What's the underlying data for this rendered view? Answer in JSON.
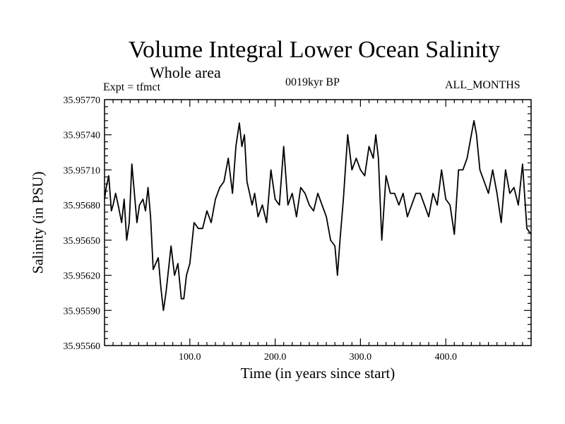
{
  "header": {
    "title": "Volume Integral Lower Ocean Salinity",
    "subtitle": "Whole area",
    "expt": "Expt = tfmct",
    "period": "0019kyr BP",
    "months": "ALL_MONTHS"
  },
  "colors": {
    "line": "#000000",
    "axis": "#000000",
    "background": "#ffffff"
  },
  "chart_data": {
    "type": "line",
    "title": "Volume Integral Lower Ocean Salinity",
    "subtitle": "Whole area",
    "xlabel": "Time (in years since start)",
    "ylabel": "Salinity (in PSU)",
    "xlim": [
      0,
      500
    ],
    "ylim": [
      35.9556,
      35.9577
    ],
    "x_ticks": [
      100,
      200,
      300,
      400
    ],
    "x_tick_labels": [
      "100.0",
      "200.0",
      "300.0",
      "400.0"
    ],
    "y_ticks": [
      35.9556,
      35.9559,
      35.9562,
      35.9565,
      35.9568,
      35.9571,
      35.9574,
      35.9577
    ],
    "y_tick_labels": [
      "35.95560",
      "35.95590",
      "35.95620",
      "35.95650",
      "35.95680",
      "35.95710",
      "35.95740",
      "35.95770"
    ],
    "grid": false,
    "series": [
      {
        "x": [
          0,
          2,
          5,
          8,
          10,
          13,
          16,
          20,
          23,
          26,
          29,
          32,
          35,
          38,
          41,
          45,
          48,
          51,
          54,
          57,
          60,
          63,
          66,
          69,
          72,
          75,
          78,
          82,
          86,
          90,
          93,
          96,
          100,
          105,
          110,
          115,
          120,
          125,
          130,
          135,
          140,
          145,
          150,
          154,
          158,
          161,
          164,
          167,
          170,
          173,
          176,
          180,
          185,
          190,
          195,
          200,
          205,
          210,
          215,
          220,
          225,
          230,
          235,
          240,
          245,
          250,
          255,
          260,
          265,
          270,
          273,
          276,
          280,
          285,
          290,
          295,
          300,
          305,
          310,
          315,
          318,
          321,
          325,
          330,
          335,
          340,
          345,
          350,
          355,
          360,
          365,
          370,
          375,
          380,
          385,
          390,
          395,
          400,
          405,
          410,
          415,
          420,
          425,
          430,
          433,
          436,
          440,
          445,
          450,
          455,
          460,
          465,
          470,
          475,
          480,
          485,
          490,
          495,
          500
        ],
        "y": [
          35.95685,
          35.95695,
          35.95705,
          35.95675,
          35.9568,
          35.9569,
          35.9568,
          35.95665,
          35.95685,
          35.9565,
          35.95665,
          35.95715,
          35.9569,
          35.95665,
          35.9568,
          35.95685,
          35.95675,
          35.95695,
          35.9567,
          35.95625,
          35.9563,
          35.95635,
          35.9561,
          35.9559,
          35.95605,
          35.95625,
          35.95645,
          35.9562,
          35.9563,
          35.956,
          35.956,
          35.9562,
          35.9563,
          35.95665,
          35.9566,
          35.9566,
          35.95675,
          35.95665,
          35.95685,
          35.95695,
          35.957,
          35.9572,
          35.9569,
          35.9573,
          35.9575,
          35.9573,
          35.9574,
          35.957,
          35.9569,
          35.9568,
          35.9569,
          35.9567,
          35.9568,
          35.95665,
          35.9571,
          35.95685,
          35.9568,
          35.9573,
          35.9568,
          35.9569,
          35.9567,
          35.95695,
          35.9569,
          35.9568,
          35.95675,
          35.9569,
          35.9568,
          35.9567,
          35.9565,
          35.95645,
          35.9562,
          35.9565,
          35.95685,
          35.9574,
          35.9571,
          35.9572,
          35.9571,
          35.95705,
          35.9573,
          35.9572,
          35.9574,
          35.9572,
          35.9565,
          35.95705,
          35.9569,
          35.9569,
          35.9568,
          35.9569,
          35.9567,
          35.9568,
          35.9569,
          35.9569,
          35.9568,
          35.9567,
          35.9569,
          35.9568,
          35.9571,
          35.95685,
          35.9568,
          35.95655,
          35.9571,
          35.9571,
          35.9572,
          35.9574,
          35.95752,
          35.9574,
          35.9571,
          35.957,
          35.9569,
          35.9571,
          35.9569,
          35.95665,
          35.9571,
          35.9569,
          35.95695,
          35.9568,
          35.95715,
          35.9566,
          35.95655
        ]
      }
    ]
  },
  "axes": {
    "xlabel": "Time (in years since start)",
    "ylabel": "Salinity (in PSU)"
  }
}
